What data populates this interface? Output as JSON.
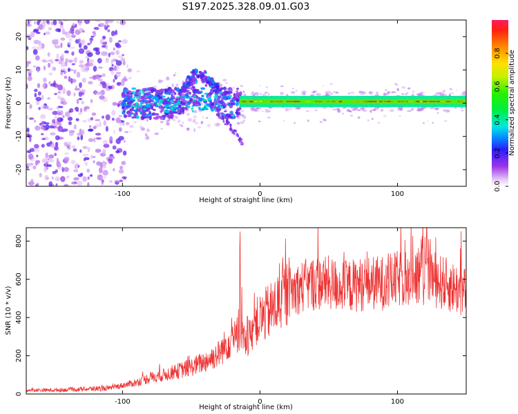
{
  "chart_data": [
    {
      "id": "spectrogram",
      "type": "heatmap",
      "title": "S197.2025.328.09.01.G03",
      "xlabel": "Height of straight line (km)",
      "ylabel": "Frequency (Hz)",
      "xlim": [
        -170,
        150
      ],
      "ylim": [
        -25,
        25
      ],
      "xticks": [
        -100,
        0,
        100
      ],
      "yticks": [
        -20,
        -10,
        0,
        10,
        20
      ],
      "colorbar": {
        "label": "Normalized spectral amplitude",
        "range": [
          0,
          1
        ],
        "ticks": [
          0.0,
          0.2,
          0.4,
          0.6,
          0.8
        ],
        "tick_labels": [
          "0.0",
          "0.2",
          "0.4",
          "0.6",
          "0.8"
        ]
      },
      "features": {
        "noise_region_km": [
          -170,
          -100
        ],
        "central_ridge_freq_hz": 0.5,
        "upper_hump": {
          "x_km": [
            -60,
            -30
          ],
          "peak_freq_hz": 9
        },
        "lower_branch": {
          "x_km": [
            -30,
            -12
          ],
          "end_freq_hz": -12
        },
        "stable_line_x_km": [
          -15,
          150
        ]
      }
    },
    {
      "id": "snr",
      "type": "line",
      "xlabel": "Height of straight line (km)",
      "ylabel": "SNR (10 * v/v)",
      "xlim": [
        -170,
        150
      ],
      "ylim": [
        0,
        870
      ],
      "xticks": [
        -100,
        0,
        100
      ],
      "yticks": [
        0,
        200,
        400,
        600,
        800
      ],
      "series_color": "#ee3333",
      "series": [
        {
          "name": "SNR",
          "x": [
            -170,
            -150,
            -130,
            -110,
            -100,
            -90,
            -80,
            -70,
            -60,
            -50,
            -40,
            -30,
            -20,
            -15,
            -10,
            -5,
            0,
            10,
            20,
            30,
            40,
            50,
            60,
            70,
            80,
            90,
            100,
            110,
            120,
            130,
            140,
            150
          ],
          "y": [
            20,
            20,
            25,
            30,
            45,
            60,
            85,
            100,
            120,
            140,
            170,
            210,
            300,
            320,
            260,
            360,
            390,
            450,
            530,
            560,
            580,
            580,
            560,
            570,
            580,
            580,
            600,
            610,
            620,
            590,
            560,
            530
          ]
        },
        {
          "name": "spike",
          "x": [
            -14.5
          ],
          "y": [
            850
          ]
        }
      ]
    }
  ]
}
